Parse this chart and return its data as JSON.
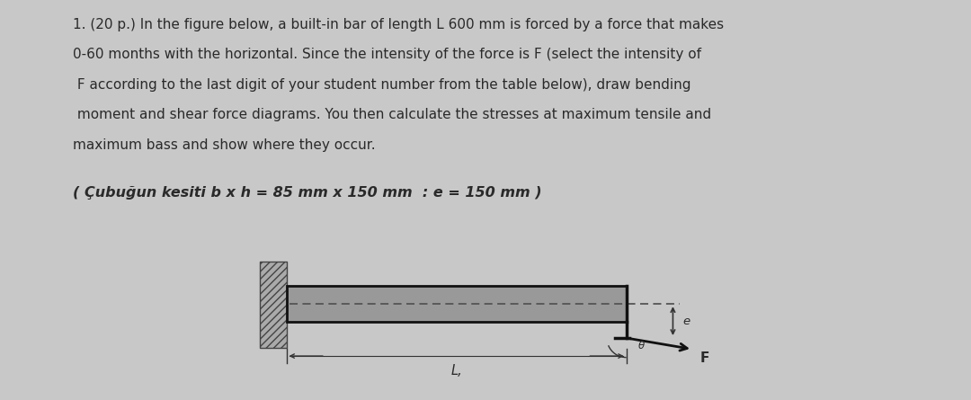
{
  "bg_color": "#c8c8c8",
  "text_color": "#2a2a2a",
  "title_line1": "1. (20 p.) In the figure below, a built-in bar of length L 600 mm is forced by a force that makes",
  "title_line2": "0-60 months with the horizontal. Since the intensity of the force is F (select the intensity of",
  "title_line3": " F according to the last digit of your student number from the table below), draw bending",
  "title_line4": " moment and shear force diagrams. You then calculate the stresses at maximum tensile and",
  "title_line5": "maximum bass and show where they occur.",
  "subtitle": "( Çubuğun kesiti b x h = 85 mm x 150 mm  : e = 150 mm )",
  "eccentricity_label": "e",
  "force_label": "F",
  "angle_label": "θ",
  "length_label": "L,",
  "font_size_main": 11.0,
  "font_size_subtitle": 11.5,
  "wall_hatch": "////",
  "wall_facecolor": "#aaaaaa",
  "bar_facecolor": "#b8b8b8",
  "bar_edgecolor": "#111111",
  "dashed_color": "#555555",
  "arrow_color": "#111111",
  "dim_color": "#333333"
}
